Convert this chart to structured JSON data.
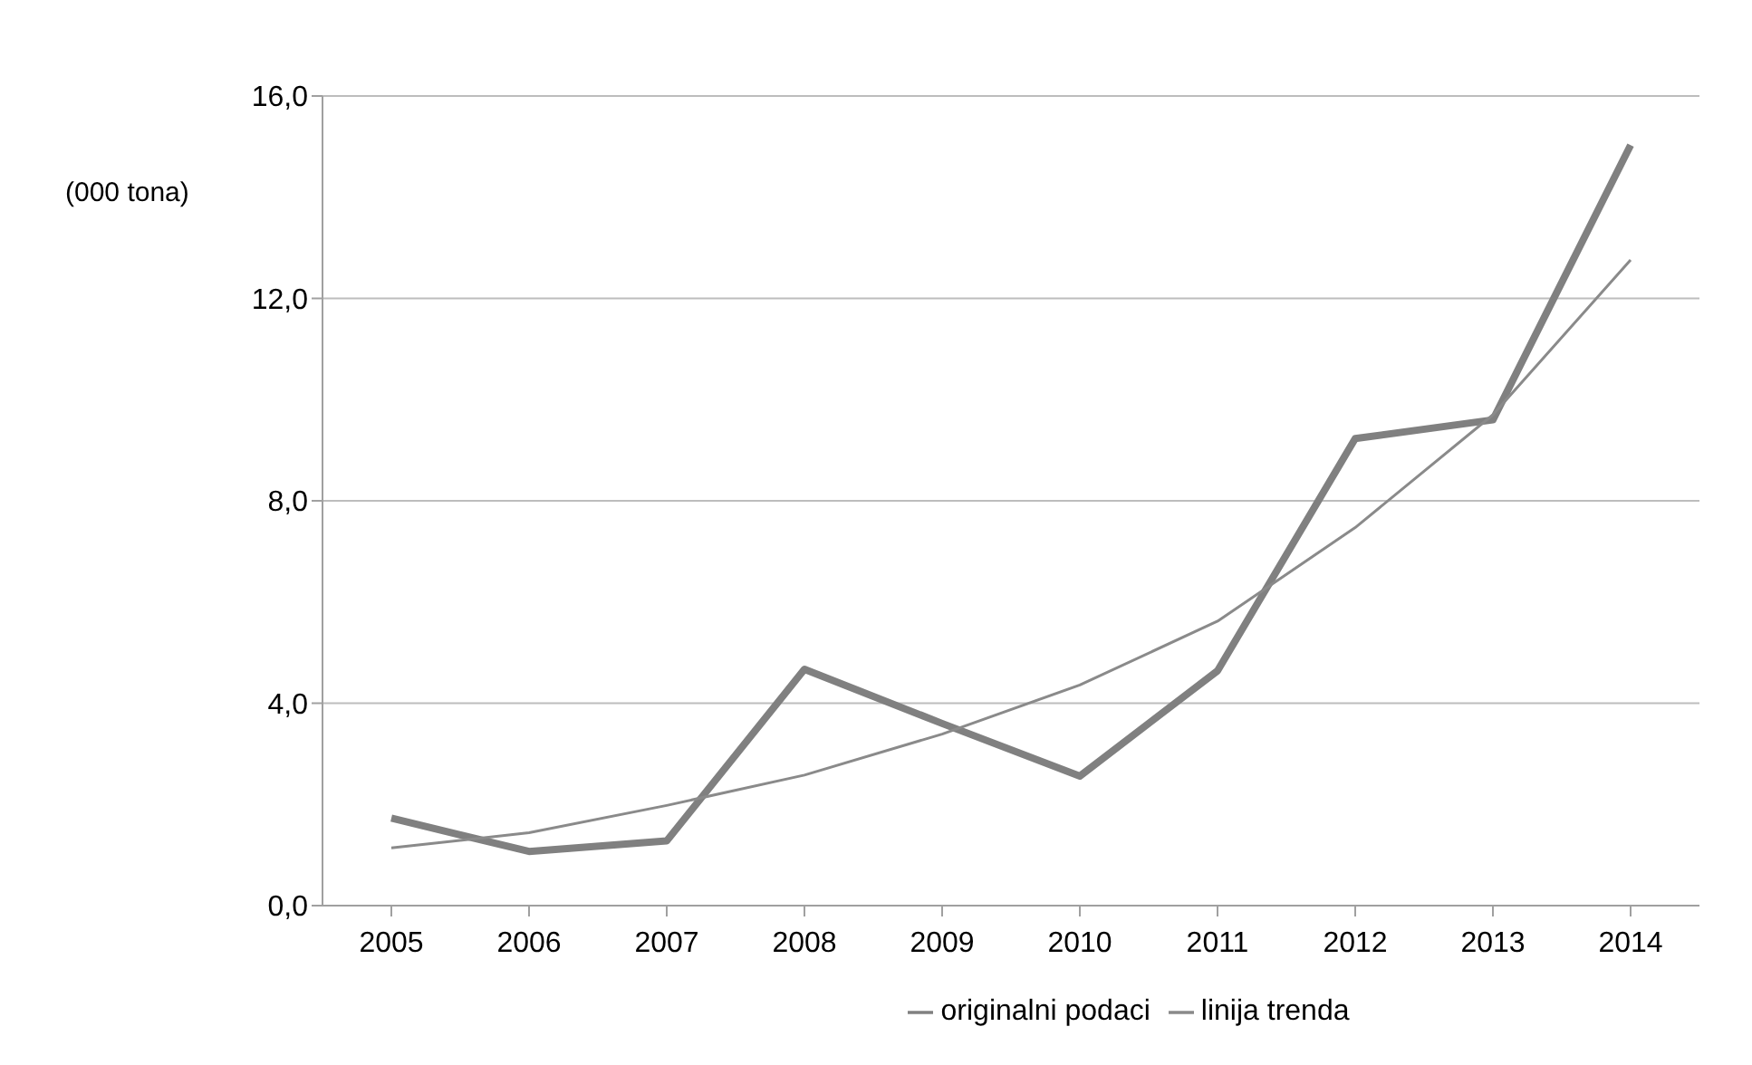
{
  "chart_data": {
    "type": "line",
    "ylabel": "(000 tona)",
    "categories": [
      "2005",
      "2006",
      "2007",
      "2008",
      "2009",
      "2010",
      "2011",
      "2012",
      "2013",
      "2014"
    ],
    "series": [
      {
        "name": "originalni podaci",
        "color": "#808080",
        "values": [
          1.73,
          1.07,
          1.28,
          4.67,
          3.6,
          2.56,
          4.64,
          9.23,
          9.6,
          15.03
        ]
      },
      {
        "name": "linija trenda",
        "color": "#8a8a8a",
        "values": [
          1.14,
          1.44,
          1.98,
          2.58,
          3.39,
          4.36,
          5.62,
          7.47,
          9.7,
          12.76
        ]
      }
    ],
    "ylim": [
      0,
      16
    ],
    "yticks": [
      {
        "value": 0,
        "label": "0,0"
      },
      {
        "value": 4,
        "label": "4,0"
      },
      {
        "value": 8,
        "label": "8,0"
      },
      {
        "value": 12,
        "label": "12,0"
      },
      {
        "value": 16,
        "label": "16,0"
      }
    ],
    "grid": "y",
    "legend": "bottom",
    "marker": "none",
    "line_style": "solid"
  }
}
